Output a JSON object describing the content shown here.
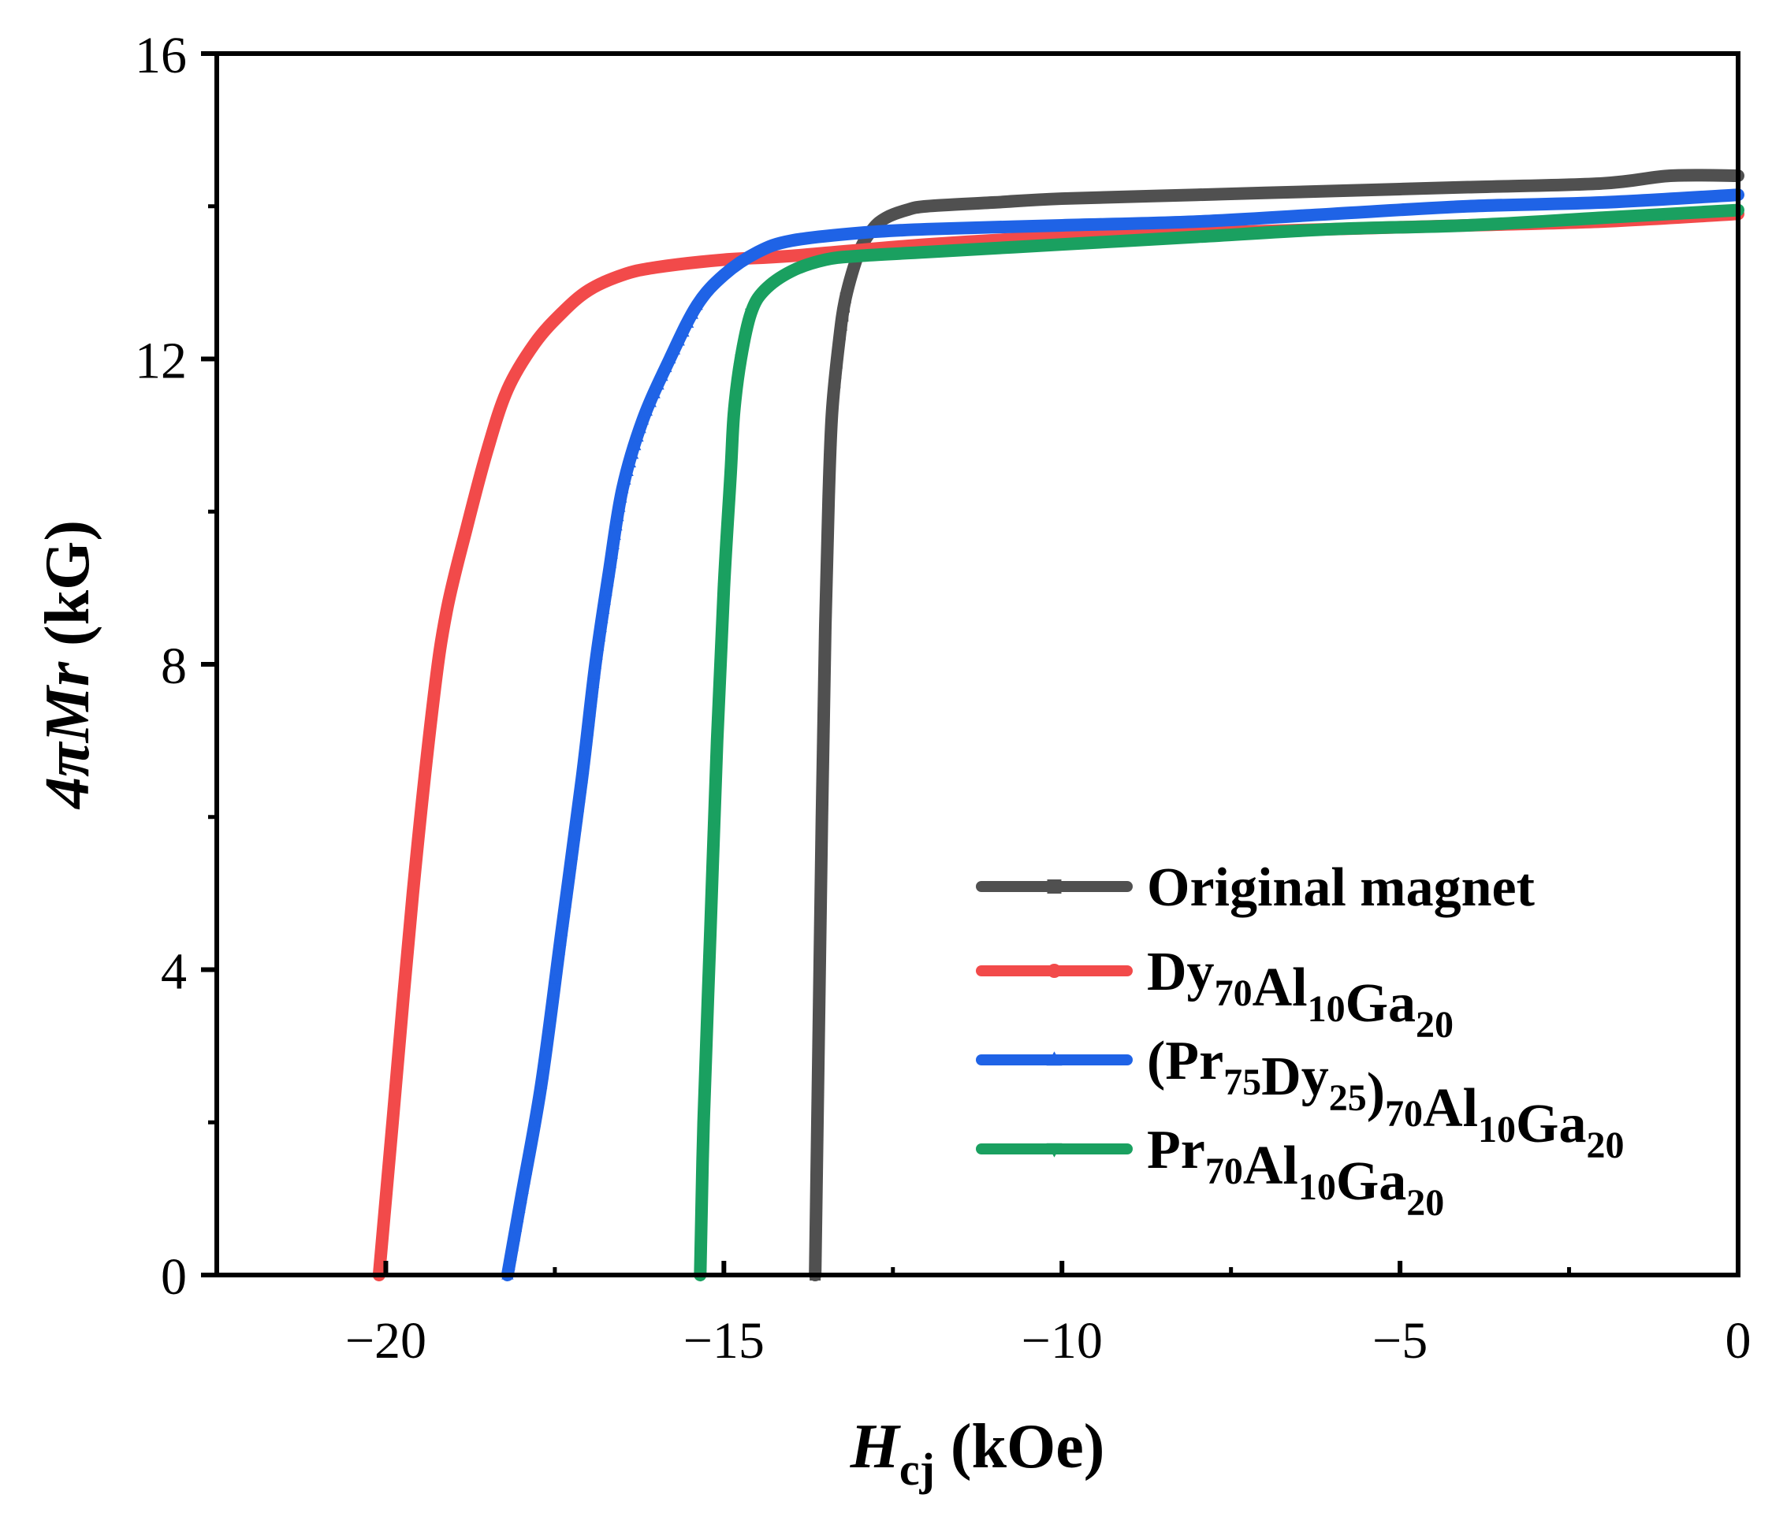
{
  "chart_data": {
    "type": "line",
    "title": "",
    "xlabel": {
      "main": "H",
      "sub": "cj",
      "unit": " (kOe)"
    },
    "ylabel": {
      "prefix": "4πMr",
      "unit": " (kG)"
    },
    "xlim": [
      -22.5,
      0
    ],
    "ylim": [
      0,
      16
    ],
    "xticks": [
      -20,
      -15,
      -10,
      -5,
      0
    ],
    "xtick_labels": [
      "−20",
      "−15",
      "−10",
      "−5",
      "0"
    ],
    "yticks": [
      0,
      4,
      8,
      12,
      16
    ],
    "ytick_labels": [
      "0",
      "4",
      "8",
      "12",
      "16"
    ],
    "grid": false,
    "legend_position": "bottom-right",
    "series": [
      {
        "name": "Original magnet",
        "label_parts": [
          {
            "t": "Original magnet"
          }
        ],
        "color": "#505050",
        "marker": "square",
        "x": [
          -13.65,
          -13.6,
          -13.55,
          -13.5,
          -13.45,
          -13.4,
          -13.3,
          -13.2,
          -13.0,
          -12.8,
          -12.6,
          -12.3,
          -12.0,
          -11.0,
          -10.0,
          -8.0,
          -6.0,
          -4.0,
          -2.0,
          -1.0,
          0.0
        ],
        "y": [
          0.0,
          3.0,
          6.0,
          8.5,
          10.2,
          11.3,
          12.2,
          12.8,
          13.4,
          13.7,
          13.85,
          13.95,
          14.0,
          14.05,
          14.1,
          14.15,
          14.2,
          14.25,
          14.3,
          14.4,
          14.4
        ]
      },
      {
        "name": "Dy70Al10Ga20",
        "label_parts": [
          {
            "t": "Dy"
          },
          {
            "t": "70",
            "s": true
          },
          {
            "t": "Al"
          },
          {
            "t": "10",
            "s": true
          },
          {
            "t": "Ga"
          },
          {
            "t": "20",
            "s": true
          }
        ],
        "color": "#f24a4a",
        "marker": "circle",
        "x": [
          -20.1,
          -19.9,
          -19.6,
          -19.3,
          -19.1,
          -18.8,
          -18.5,
          -18.2,
          -17.8,
          -17.4,
          -17.0,
          -16.5,
          -16.0,
          -15.0,
          -14.0,
          -12.0,
          -10.0,
          -8.0,
          -6.0,
          -4.0,
          -2.0,
          0.0
        ],
        "y": [
          0.0,
          2.0,
          5.0,
          7.5,
          8.7,
          9.8,
          10.8,
          11.6,
          12.2,
          12.6,
          12.9,
          13.1,
          13.2,
          13.3,
          13.35,
          13.5,
          13.6,
          13.65,
          13.7,
          13.75,
          13.8,
          13.9
        ]
      },
      {
        "name": "(Pr75Dy25)70Al10Ga20",
        "label_parts": [
          {
            "t": "(Pr"
          },
          {
            "t": "75",
            "s": true
          },
          {
            "t": "Dy"
          },
          {
            "t": "25",
            "s": true
          },
          {
            "t": ")"
          },
          {
            "t": "70",
            "s": true
          },
          {
            "t": "Al"
          },
          {
            "t": "10",
            "s": true
          },
          {
            "t": "Ga"
          },
          {
            "t": "20",
            "s": true
          }
        ],
        "color": "#1f63e6",
        "marker": "triangle-up",
        "x": [
          -18.2,
          -18.0,
          -17.7,
          -17.4,
          -17.1,
          -16.9,
          -16.7,
          -16.5,
          -16.2,
          -15.8,
          -15.4,
          -15.0,
          -14.5,
          -14.0,
          -13.0,
          -12.0,
          -10.0,
          -8.0,
          -6.0,
          -4.0,
          -2.0,
          0.0
        ],
        "y": [
          0.0,
          1.0,
          2.5,
          4.5,
          6.5,
          8.0,
          9.2,
          10.3,
          11.2,
          12.0,
          12.7,
          13.1,
          13.4,
          13.55,
          13.65,
          13.7,
          13.75,
          13.8,
          13.9,
          14.0,
          14.05,
          14.15
        ]
      },
      {
        "name": "Pr70Al10Ga20",
        "label_parts": [
          {
            "t": "Pr"
          },
          {
            "t": "70",
            "s": true
          },
          {
            "t": "Al"
          },
          {
            "t": "10",
            "s": true
          },
          {
            "t": "Ga"
          },
          {
            "t": "20",
            "s": true
          }
        ],
        "color": "#1aa060",
        "marker": "triangle-down",
        "x": [
          -15.35,
          -15.3,
          -15.2,
          -15.1,
          -15.0,
          -14.9,
          -14.85,
          -14.75,
          -14.6,
          -14.4,
          -14.0,
          -13.5,
          -13.0,
          -12.0,
          -10.0,
          -8.0,
          -6.0,
          -4.0,
          -2.0,
          0.0
        ],
        "y": [
          0.0,
          2.0,
          4.5,
          7.0,
          9.0,
          10.5,
          11.3,
          12.0,
          12.6,
          12.9,
          13.15,
          13.3,
          13.35,
          13.4,
          13.5,
          13.6,
          13.7,
          13.75,
          13.85,
          13.95
        ]
      }
    ]
  }
}
